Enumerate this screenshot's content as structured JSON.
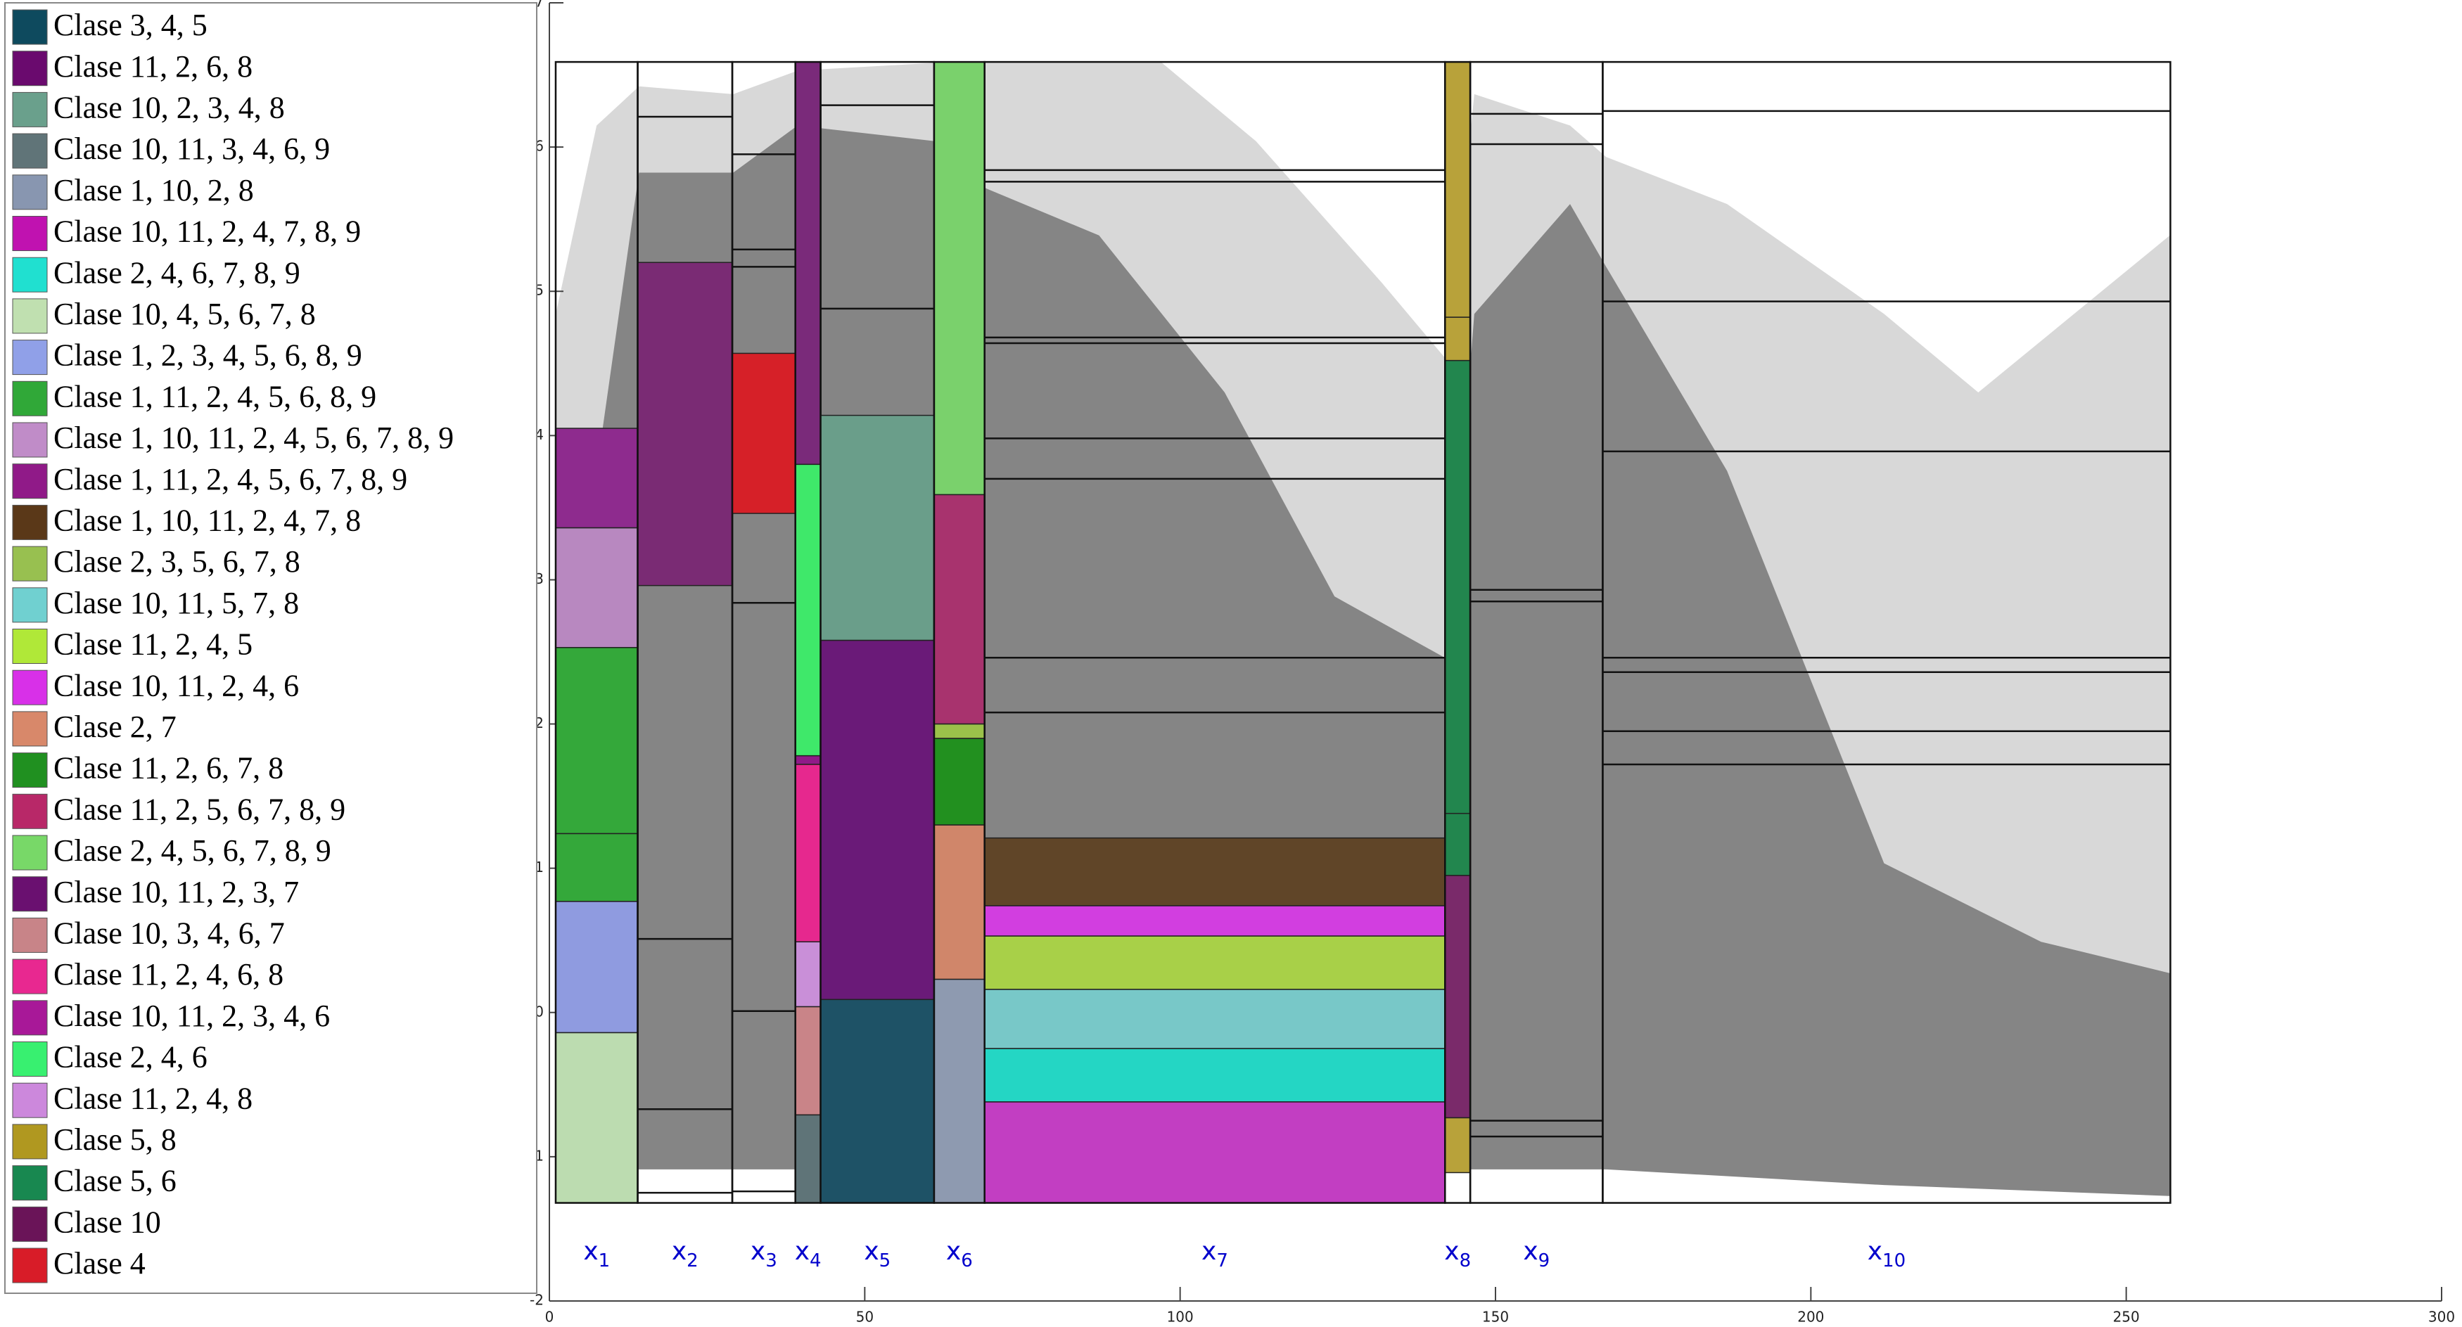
{
  "chart_data": {
    "type": "interval-boxes",
    "xlim": [
      0,
      300
    ],
    "xticks": [
      0,
      50,
      100,
      150,
      200,
      250,
      300
    ],
    "ylim": [
      -2,
      7
    ],
    "yticks": [
      -2,
      -1,
      0,
      1,
      2,
      3,
      4,
      5,
      6,
      7
    ],
    "box_ylim": [
      -1.32,
      6.59
    ],
    "legend": [
      {
        "name": "Clase 3, 4, 5",
        "color": "#0e4a5e"
      },
      {
        "name": "Clase 11, 2, 6, 8",
        "color": "#6a0a6e"
      },
      {
        "name": "Clase 10, 2, 3, 4, 8",
        "color": "#6aa08c"
      },
      {
        "name": "Clase 10, 11, 3, 4, 6, 9",
        "color": "#607478"
      },
      {
        "name": "Clase 1, 10, 2, 8",
        "color": "#8896b0"
      },
      {
        "name": "Clase 10, 11, 2, 4, 7, 8, 9",
        "color": "#c012b0"
      },
      {
        "name": "Clase 2, 4, 6, 7, 8, 9",
        "color": "#20e0d0"
      },
      {
        "name": "Clase 10, 4, 5, 6, 7, 8",
        "color": "#c0e0b0"
      },
      {
        "name": "Clase 1, 2, 3, 4, 5, 6, 8, 9",
        "color": "#90a0e8"
      },
      {
        "name": "Clase 1, 11, 2, 4, 5, 6, 8, 9",
        "color": "#30a838"
      },
      {
        "name": "Clase 1, 10, 11, 2, 4, 5, 6, 7, 8, 9",
        "color": "#c08cc8"
      },
      {
        "name": "Clase 1, 11, 2, 4, 5, 6, 7, 8, 9",
        "color": "#901a88"
      },
      {
        "name": "Clase 1, 10, 11, 2, 4, 7, 8",
        "color": "#5a3818"
      },
      {
        "name": "Clase 2, 3, 5, 6, 7, 8",
        "color": "#98c050"
      },
      {
        "name": "Clase 10, 11, 5, 7, 8",
        "color": "#70d0d0"
      },
      {
        "name": "Clase 11, 2, 4, 5",
        "color": "#b0e838"
      },
      {
        "name": "Clase 10, 11, 2, 4, 6",
        "color": "#d830e8"
      },
      {
        "name": "Clase 2, 7",
        "color": "#d8886a"
      },
      {
        "name": "Clase 11, 2, 6, 7, 8",
        "color": "#209020"
      },
      {
        "name": "Clase 11, 2, 5, 6, 7, 8, 9",
        "color": "#b82868"
      },
      {
        "name": "Clase 2, 4, 5, 6, 7, 8, 9",
        "color": "#78d868"
      },
      {
        "name": "Clase 10, 11, 2, 3, 7",
        "color": "#6a1070"
      },
      {
        "name": "Clase 10, 3, 4, 6, 7",
        "color": "#c88488"
      },
      {
        "name": "Clase 11, 2, 4, 6, 8",
        "color": "#e82890"
      },
      {
        "name": "Clase 10, 11, 2, 3, 4, 6",
        "color": "#a81898"
      },
      {
        "name": "Clase 2, 4, 6",
        "color": "#38f070"
      },
      {
        "name": "Clase 11, 2, 4, 8",
        "color": "#cc88dc"
      },
      {
        "name": "Clase 5, 8",
        "color": "#b09820"
      },
      {
        "name": "Clase 5, 6",
        "color": "#188850"
      },
      {
        "name": "Clase 10",
        "color": "#6a1458"
      },
      {
        "name": "Clase 4",
        "color": "#d81c28"
      }
    ],
    "intervals": [
      {
        "label": "x",
        "sub": "1",
        "x": [
          1,
          14
        ],
        "lines": [],
        "boxes": [
          {
            "from": 3.36,
            "to": 4.05,
            "color": "#8e2b8e"
          },
          {
            "from": 2.53,
            "to": 3.36,
            "color": "#b888c0"
          },
          {
            "from": 1.24,
            "to": 2.53,
            "color": "#34a83a"
          },
          {
            "from": 0.77,
            "to": 1.24,
            "color": "#34a83a"
          },
          {
            "from": -0.14,
            "to": 0.77,
            "color": "#8f9be0"
          },
          {
            "from": -1.32,
            "to": -0.14,
            "color": "#bcdcb0"
          }
        ]
      },
      {
        "label": "x",
        "sub": "2",
        "x": [
          14,
          29
        ],
        "lines": [
          6.21,
          0.51,
          -0.67,
          -1.25
        ],
        "boxes": [
          {
            "from": 2.96,
            "to": 5.2,
            "color": "#7a2b74"
          }
        ]
      },
      {
        "label": "x",
        "sub": "3",
        "x": [
          29,
          39
        ],
        "lines": [
          5.95,
          5.29,
          5.17,
          2.84,
          0.01,
          -1.24
        ],
        "boxes": [
          {
            "from": 3.46,
            "to": 4.57,
            "color": "#d62028"
          }
        ]
      },
      {
        "label": "x",
        "sub": "4",
        "x": [
          39,
          43
        ],
        "lines": [],
        "boxes": [
          {
            "from": 3.8,
            "to": 6.59,
            "color": "#7a2a7a"
          },
          {
            "from": 1.78,
            "to": 3.8,
            "color": "#3fe86a"
          },
          {
            "from": 1.72,
            "to": 1.78,
            "color": "#901a88"
          },
          {
            "from": 0.49,
            "to": 1.72,
            "color": "#e6288e"
          },
          {
            "from": 0.04,
            "to": 0.49,
            "color": "#c98fd8"
          },
          {
            "from": -0.71,
            "to": 0.04,
            "color": "#c98488"
          },
          {
            "from": -1.32,
            "to": -0.71,
            "color": "#5f7478"
          }
        ]
      },
      {
        "label": "x",
        "sub": "5",
        "x": [
          43,
          61
        ],
        "lines": [
          6.29,
          4.88
        ],
        "boxes": [
          {
            "from": 2.58,
            "to": 4.14,
            "color": "#6a9e8a"
          },
          {
            "from": 0.09,
            "to": 2.58,
            "color": "#6a1a78"
          },
          {
            "from": -1.32,
            "to": 0.09,
            "color": "#1e5266"
          }
        ]
      },
      {
        "label": "x",
        "sub": "6",
        "x": [
          61,
          69
        ],
        "lines": [],
        "boxes": [
          {
            "from": 3.59,
            "to": 6.59,
            "color": "#7ad16c"
          },
          {
            "from": 2.0,
            "to": 3.59,
            "color": "#a8336e"
          },
          {
            "from": 1.9,
            "to": 2.0,
            "color": "#9bc24a"
          },
          {
            "from": 1.3,
            "to": 1.9,
            "color": "#22901f"
          },
          {
            "from": 0.23,
            "to": 1.3,
            "color": "#d0866a"
          },
          {
            "from": -1.32,
            "to": 0.23,
            "color": "#8e9ab0"
          }
        ]
      },
      {
        "label": "x",
        "sub": "7",
        "x": [
          69,
          142
        ],
        "lines": [
          5.84,
          5.76,
          4.68,
          4.64,
          3.98,
          3.7,
          2.46,
          2.08
        ],
        "boxes": [
          {
            "from": 0.74,
            "to": 1.21,
            "color": "#604528"
          },
          {
            "from": 0.53,
            "to": 0.74,
            "color": "#d23ee0"
          },
          {
            "from": 0.16,
            "to": 0.53,
            "color": "#a8d048"
          },
          {
            "from": -0.25,
            "to": 0.16,
            "color": "#78c8c8"
          },
          {
            "from": -0.62,
            "to": -0.25,
            "color": "#24d6c4"
          },
          {
            "from": -1.32,
            "to": -0.62,
            "color": "#c23ec2"
          }
        ]
      },
      {
        "label": "x",
        "sub": "8",
        "x": [
          142,
          146
        ],
        "lines": [],
        "boxes": [
          {
            "from": 4.82,
            "to": 6.59,
            "color": "#b8a23a"
          },
          {
            "from": 4.52,
            "to": 4.82,
            "color": "#b8a23a"
          },
          {
            "from": 1.38,
            "to": 4.52,
            "color": "#22864e"
          },
          {
            "from": 0.95,
            "to": 1.38,
            "color": "#22864e"
          },
          {
            "from": -0.73,
            "to": 0.95,
            "color": "#7a2a6a"
          },
          {
            "from": -1.11,
            "to": -0.73,
            "color": "#b8a23a"
          }
        ]
      },
      {
        "label": "x",
        "sub": "9",
        "x": [
          146,
          167
        ],
        "lines": [
          6.23,
          6.02,
          2.93,
          2.85,
          -0.75,
          -0.86
        ],
        "boxes": []
      },
      {
        "label": "x",
        "sub": "10",
        "x": [
          167,
          257
        ],
        "lines": [
          6.25,
          4.93,
          3.89,
          2.46,
          2.36,
          1.95,
          1.72
        ],
        "boxes": []
      }
    ]
  }
}
